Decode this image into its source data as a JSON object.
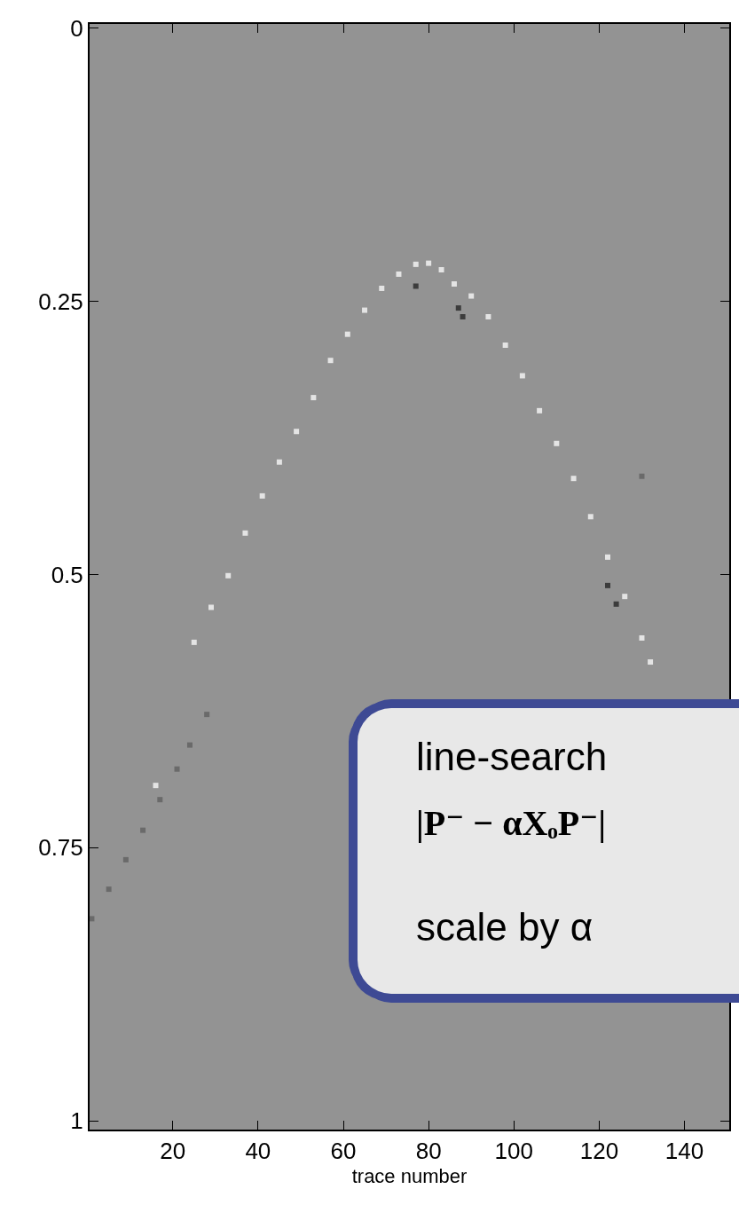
{
  "chart_data": {
    "type": "scatter",
    "xlabel": "trace number",
    "xlim": [
      0.5,
      150.5
    ],
    "xticks": [
      20,
      40,
      60,
      80,
      100,
      120,
      140
    ],
    "ylim": [
      1.008,
      -0.004
    ],
    "yticks": [
      0,
      0.25,
      0.5,
      0.75,
      1
    ],
    "grid": false,
    "marker": "square",
    "series": [
      {
        "color": "#e4e4e4",
        "x": [
          25,
          29,
          33,
          37,
          41,
          45,
          49,
          53,
          57,
          61,
          65,
          69,
          73,
          77,
          80,
          83,
          86,
          90,
          94,
          98,
          102,
          106,
          110,
          114,
          118,
          122,
          126,
          130,
          132,
          16
        ],
        "values": [
          0.562,
          0.53,
          0.501,
          0.462,
          0.428,
          0.397,
          0.369,
          0.338,
          0.304,
          0.28,
          0.258,
          0.238,
          0.225,
          0.216,
          0.215,
          0.221,
          0.234,
          0.245,
          0.264,
          0.29,
          0.318,
          0.35,
          0.38,
          0.412,
          0.447,
          0.484,
          0.52,
          0.558,
          0.58,
          0.693
        ]
      },
      {
        "color": "#3c3c3c",
        "x": [
          77,
          87,
          88,
          122,
          124
        ],
        "values": [
          0.236,
          0.256,
          0.264,
          0.51,
          0.527
        ]
      },
      {
        "color": "#6a6a6a",
        "x": [
          1,
          5,
          9,
          13,
          17,
          21,
          24,
          28,
          130
        ],
        "values": [
          0.815,
          0.788,
          0.761,
          0.734,
          0.706,
          0.678,
          0.656,
          0.628,
          0.41
        ]
      }
    ],
    "annotations": [
      "line-search",
      "|P⁻ − αXₒP⁻|",
      "scale by α"
    ]
  }
}
